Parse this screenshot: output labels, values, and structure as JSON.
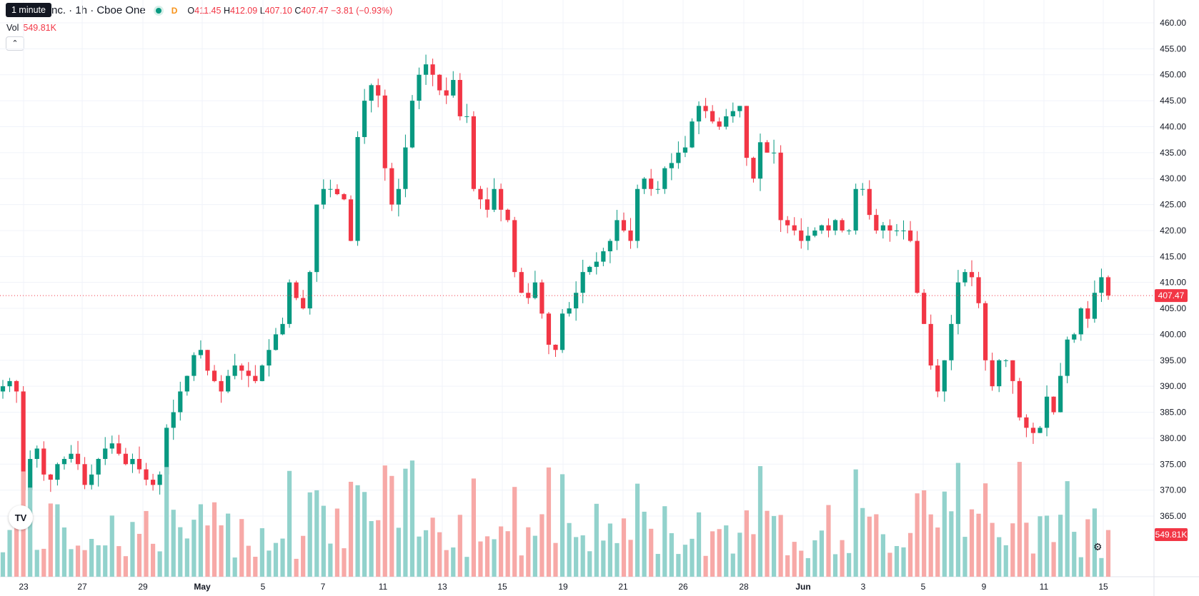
{
  "header": {
    "tooltip": "1 minute",
    "symbol": "nc. · 1h · Cboe One",
    "d_badge": "D",
    "ohlc": {
      "o_label": "O",
      "o": "411.45",
      "h_label": "H",
      "h": "412.09",
      "l_label": "L",
      "l": "407.10",
      "c_label": "C",
      "c": "407.47",
      "change": "−3.81 (−0.93%)"
    }
  },
  "volume": {
    "label": "Vol",
    "value": "549.81K",
    "badge": "549.81K"
  },
  "collapse_icon": "chevron-up-icon",
  "logo_text": "TV",
  "settings_icon": "gear-icon",
  "colors": {
    "up": "#089981",
    "down": "#f23645",
    "up_vol": "#92d2cc",
    "down_vol": "#f7a9a7",
    "grid": "#f0f3fa",
    "text": "#131722"
  },
  "chart_data": {
    "type": "candlestick",
    "y_ticks": [
      "460.00",
      "455.00",
      "450.00",
      "445.00",
      "440.00",
      "435.00",
      "430.00",
      "425.00",
      "420.00",
      "415.00",
      "410.00",
      "405.00",
      "400.00",
      "395.00",
      "390.00",
      "385.00",
      "380.00",
      "375.00",
      "370.00",
      "365.00"
    ],
    "ylim": [
      360,
      462.5
    ],
    "last_price": "407.47",
    "x_ticks": [
      "23",
      "27",
      "29",
      "May",
      "5",
      "7",
      "11",
      "13",
      "15",
      "19",
      "21",
      "26",
      "28",
      "Jun",
      "3",
      "5",
      "9",
      "11",
      "15"
    ],
    "closes": [
      390,
      391,
      389,
      370,
      376,
      378,
      373,
      372,
      375,
      376,
      377,
      375,
      371,
      373,
      376,
      378,
      379,
      377,
      375,
      376,
      374,
      372,
      371,
      373,
      382,
      385,
      389,
      392,
      396,
      397,
      393,
      391,
      389,
      392,
      394,
      393,
      392,
      391,
      394,
      397,
      400,
      402,
      410,
      407,
      405,
      412,
      425,
      428,
      428,
      427,
      426,
      418,
      438,
      445,
      448,
      446,
      432,
      425,
      428,
      436,
      445,
      450,
      452,
      450,
      447,
      446,
      449,
      442,
      442,
      428,
      426,
      424,
      428,
      424,
      422,
      412,
      408,
      407,
      410,
      404,
      398,
      397,
      404,
      405,
      408,
      412,
      413,
      414,
      416,
      418,
      422,
      420,
      418,
      428,
      430,
      428,
      428,
      432,
      433,
      435,
      436,
      441,
      444,
      443,
      441,
      440,
      442,
      443,
      444,
      434,
      430,
      437,
      435,
      435,
      422,
      421,
      420,
      418,
      419,
      420,
      421,
      420,
      422,
      420,
      420,
      428,
      428,
      423,
      420,
      421,
      420,
      420,
      420,
      418,
      408,
      402,
      394,
      389,
      395,
      402,
      410,
      412,
      411,
      406,
      395,
      390,
      395,
      395,
      391,
      384,
      382,
      381,
      382,
      388,
      385,
      392,
      399,
      400,
      405,
      403,
      408,
      411,
      407.47
    ]
  }
}
